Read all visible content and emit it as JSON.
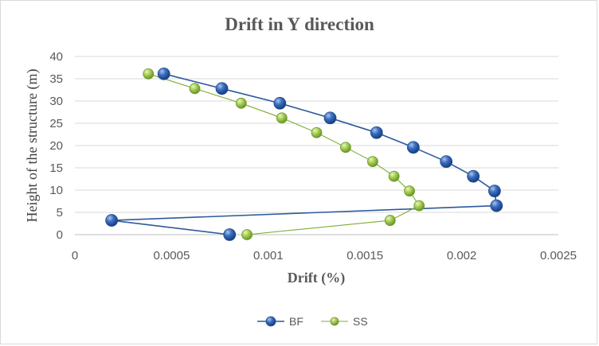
{
  "chart_data": {
    "type": "scatter",
    "title": "Drift in Y direction",
    "xlabel": "Drift (%)",
    "ylabel": "Height of the structure (m)",
    "xlim": [
      0,
      0.0025
    ],
    "ylim": [
      0,
      40
    ],
    "xticks": [
      0,
      0.0005,
      0.001,
      0.0015,
      0.002,
      0.0025
    ],
    "xtick_labels": [
      "0",
      "0.0005",
      "0.001",
      "0.0015",
      "0.002",
      "0.0025"
    ],
    "yticks": [
      0,
      5,
      10,
      15,
      20,
      25,
      30,
      35,
      40
    ],
    "ytick_labels": [
      "0",
      "5",
      "10",
      "15",
      "20",
      "25",
      "30",
      "35",
      "40"
    ],
    "grid": "horizontal",
    "legend_position": "bottom",
    "series": [
      {
        "name": "BF",
        "color": "#2e5a9c",
        "marker_color": "#1f4e9a",
        "x": [
          0.0008,
          0.00019,
          0.00218,
          0.00217,
          0.00206,
          0.00192,
          0.00175,
          0.00156,
          0.00132,
          0.00106,
          0.00076,
          0.00046
        ],
        "y": [
          0,
          3.2,
          6.5,
          9.8,
          13.1,
          16.4,
          19.6,
          22.9,
          26.2,
          29.5,
          32.8,
          36.1
        ]
      },
      {
        "name": "SS",
        "color": "#7fac34",
        "marker_color": "#9bc444",
        "x": [
          0.00089,
          0.00163,
          0.00178,
          0.00173,
          0.00165,
          0.00154,
          0.0014,
          0.00125,
          0.00107,
          0.00086,
          0.00062,
          0.00038
        ],
        "y": [
          0,
          3.2,
          6.5,
          9.8,
          13.1,
          16.4,
          19.6,
          22.9,
          26.2,
          29.5,
          32.8,
          36.1
        ]
      }
    ]
  }
}
